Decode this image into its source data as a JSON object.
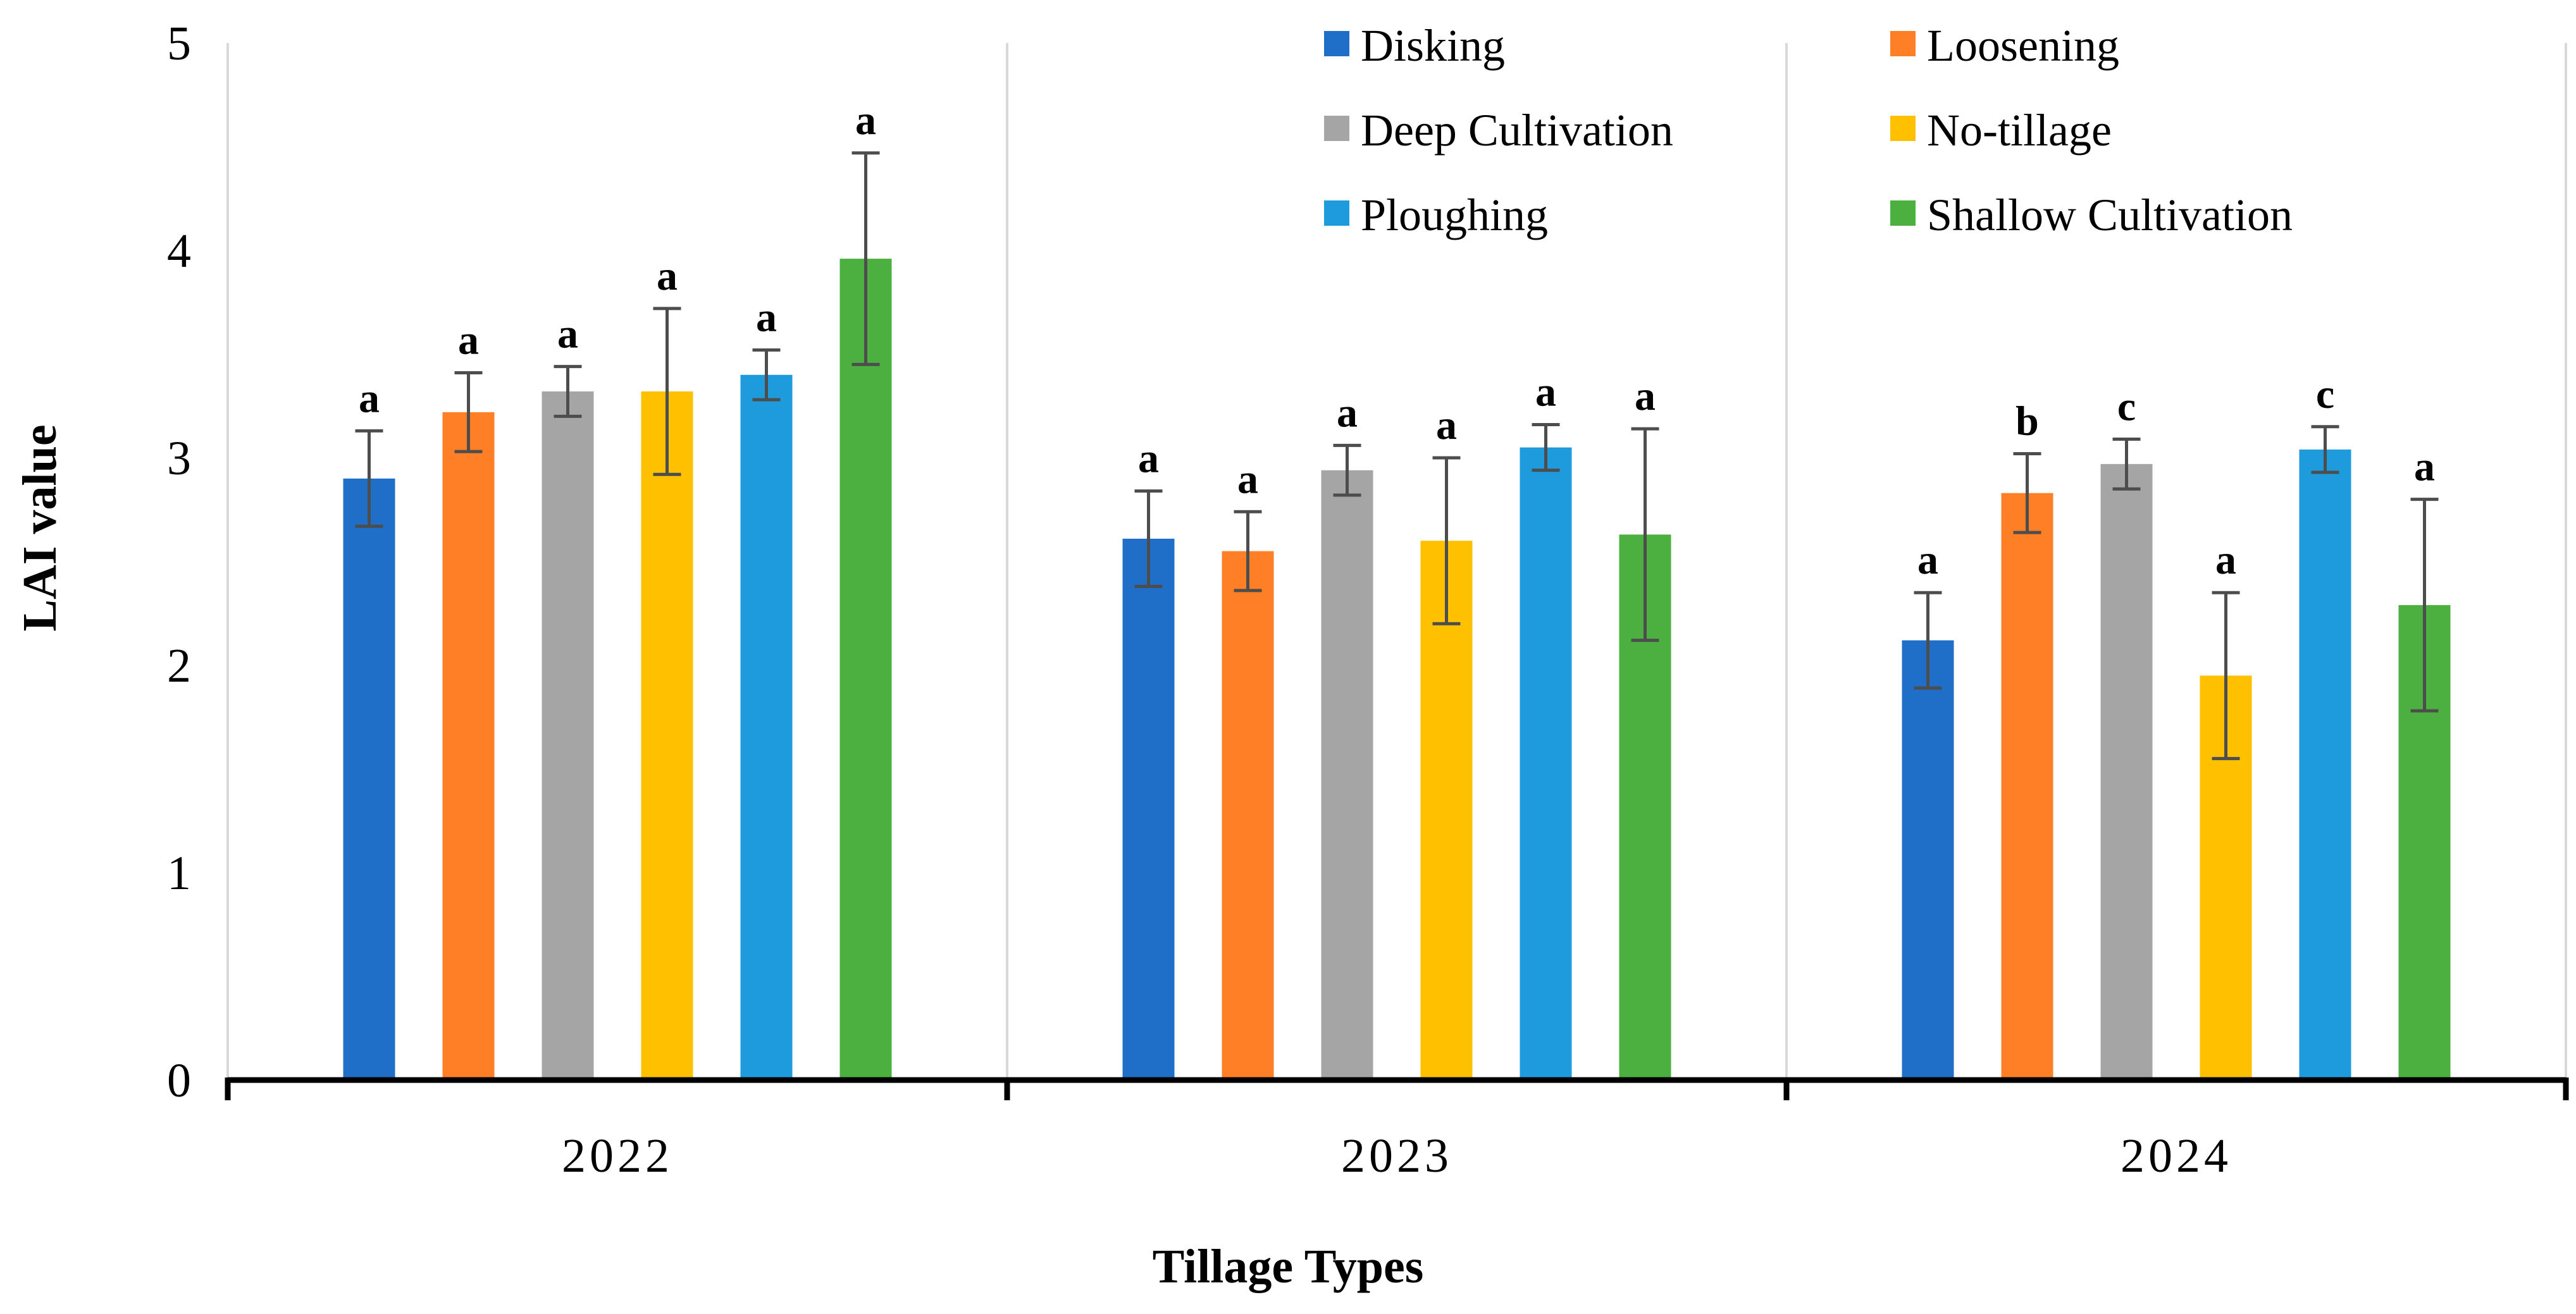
{
  "chart_data": {
    "type": "bar",
    "title": "",
    "xlabel": "Tillage Types",
    "ylabel": "LAI value",
    "ylim": [
      0,
      5
    ],
    "yticks": [
      "0",
      "1",
      "2",
      "3",
      "4",
      "5"
    ],
    "categories": [
      "2022",
      "2023",
      "2024"
    ],
    "grid": false,
    "legend": "top-right",
    "colors": [
      "#1F6FC9",
      "#FF7F27",
      "#A5A5A5",
      "#FFC000",
      "#1E9BDC",
      "#4BB040"
    ],
    "series": [
      {
        "name": "Disking",
        "values": [
          2.9,
          2.61,
          2.12
        ],
        "errors": [
          0.23,
          0.23,
          0.23
        ],
        "letters": [
          "a",
          "a",
          "a"
        ]
      },
      {
        "name": "Loosening",
        "values": [
          3.22,
          2.55,
          2.83
        ],
        "errors": [
          0.19,
          0.19,
          0.19
        ],
        "letters": [
          "a",
          "a",
          "b"
        ]
      },
      {
        "name": "Deep Cultivation",
        "values": [
          3.32,
          2.94,
          2.97
        ],
        "errors": [
          0.12,
          0.12,
          0.12
        ],
        "letters": [
          "a",
          "a",
          "c"
        ]
      },
      {
        "name": "No-tillage",
        "values": [
          3.32,
          2.6,
          1.95
        ],
        "errors": [
          0.4,
          0.4,
          0.4
        ],
        "letters": [
          "a",
          "a",
          "a"
        ]
      },
      {
        "name": "Ploughing",
        "values": [
          3.4,
          3.05,
          3.04
        ],
        "errors": [
          0.12,
          0.11,
          0.11
        ],
        "letters": [
          "a",
          "a",
          "c"
        ]
      },
      {
        "name": "Shallow Cultivation",
        "values": [
          3.96,
          2.63,
          2.29
        ],
        "errors": [
          0.51,
          0.51,
          0.51
        ],
        "letters": [
          "a",
          "a",
          "a"
        ]
      }
    ]
  }
}
